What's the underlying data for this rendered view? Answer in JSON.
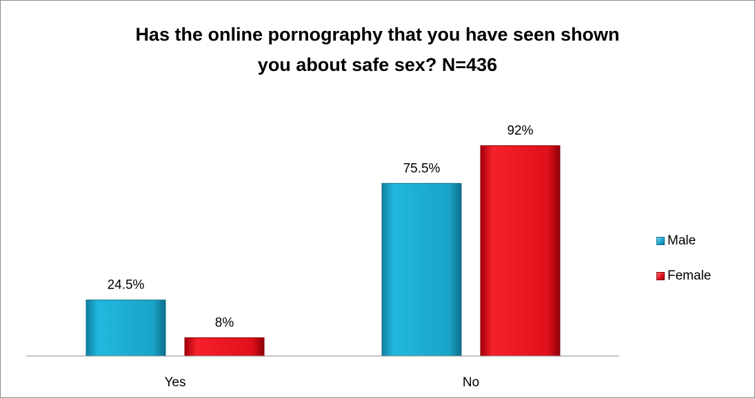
{
  "chart_data": {
    "type": "bar",
    "title": [
      "Has the online pornography that you have seen shown",
      "you about safe sex? N=436"
    ],
    "categories": [
      "Yes",
      "No"
    ],
    "series": [
      {
        "name": "Male",
        "values": [
          24.5,
          75.5
        ],
        "labels": [
          "24.5%",
          "75.5%"
        ],
        "color": "#1aa3c8"
      },
      {
        "name": "Female",
        "values": [
          8,
          92
        ],
        "labels": [
          "8%",
          "92%"
        ],
        "color": "#e0101a"
      }
    ],
    "ylim": [
      0,
      100
    ],
    "grid": false,
    "legend_position": "right"
  }
}
